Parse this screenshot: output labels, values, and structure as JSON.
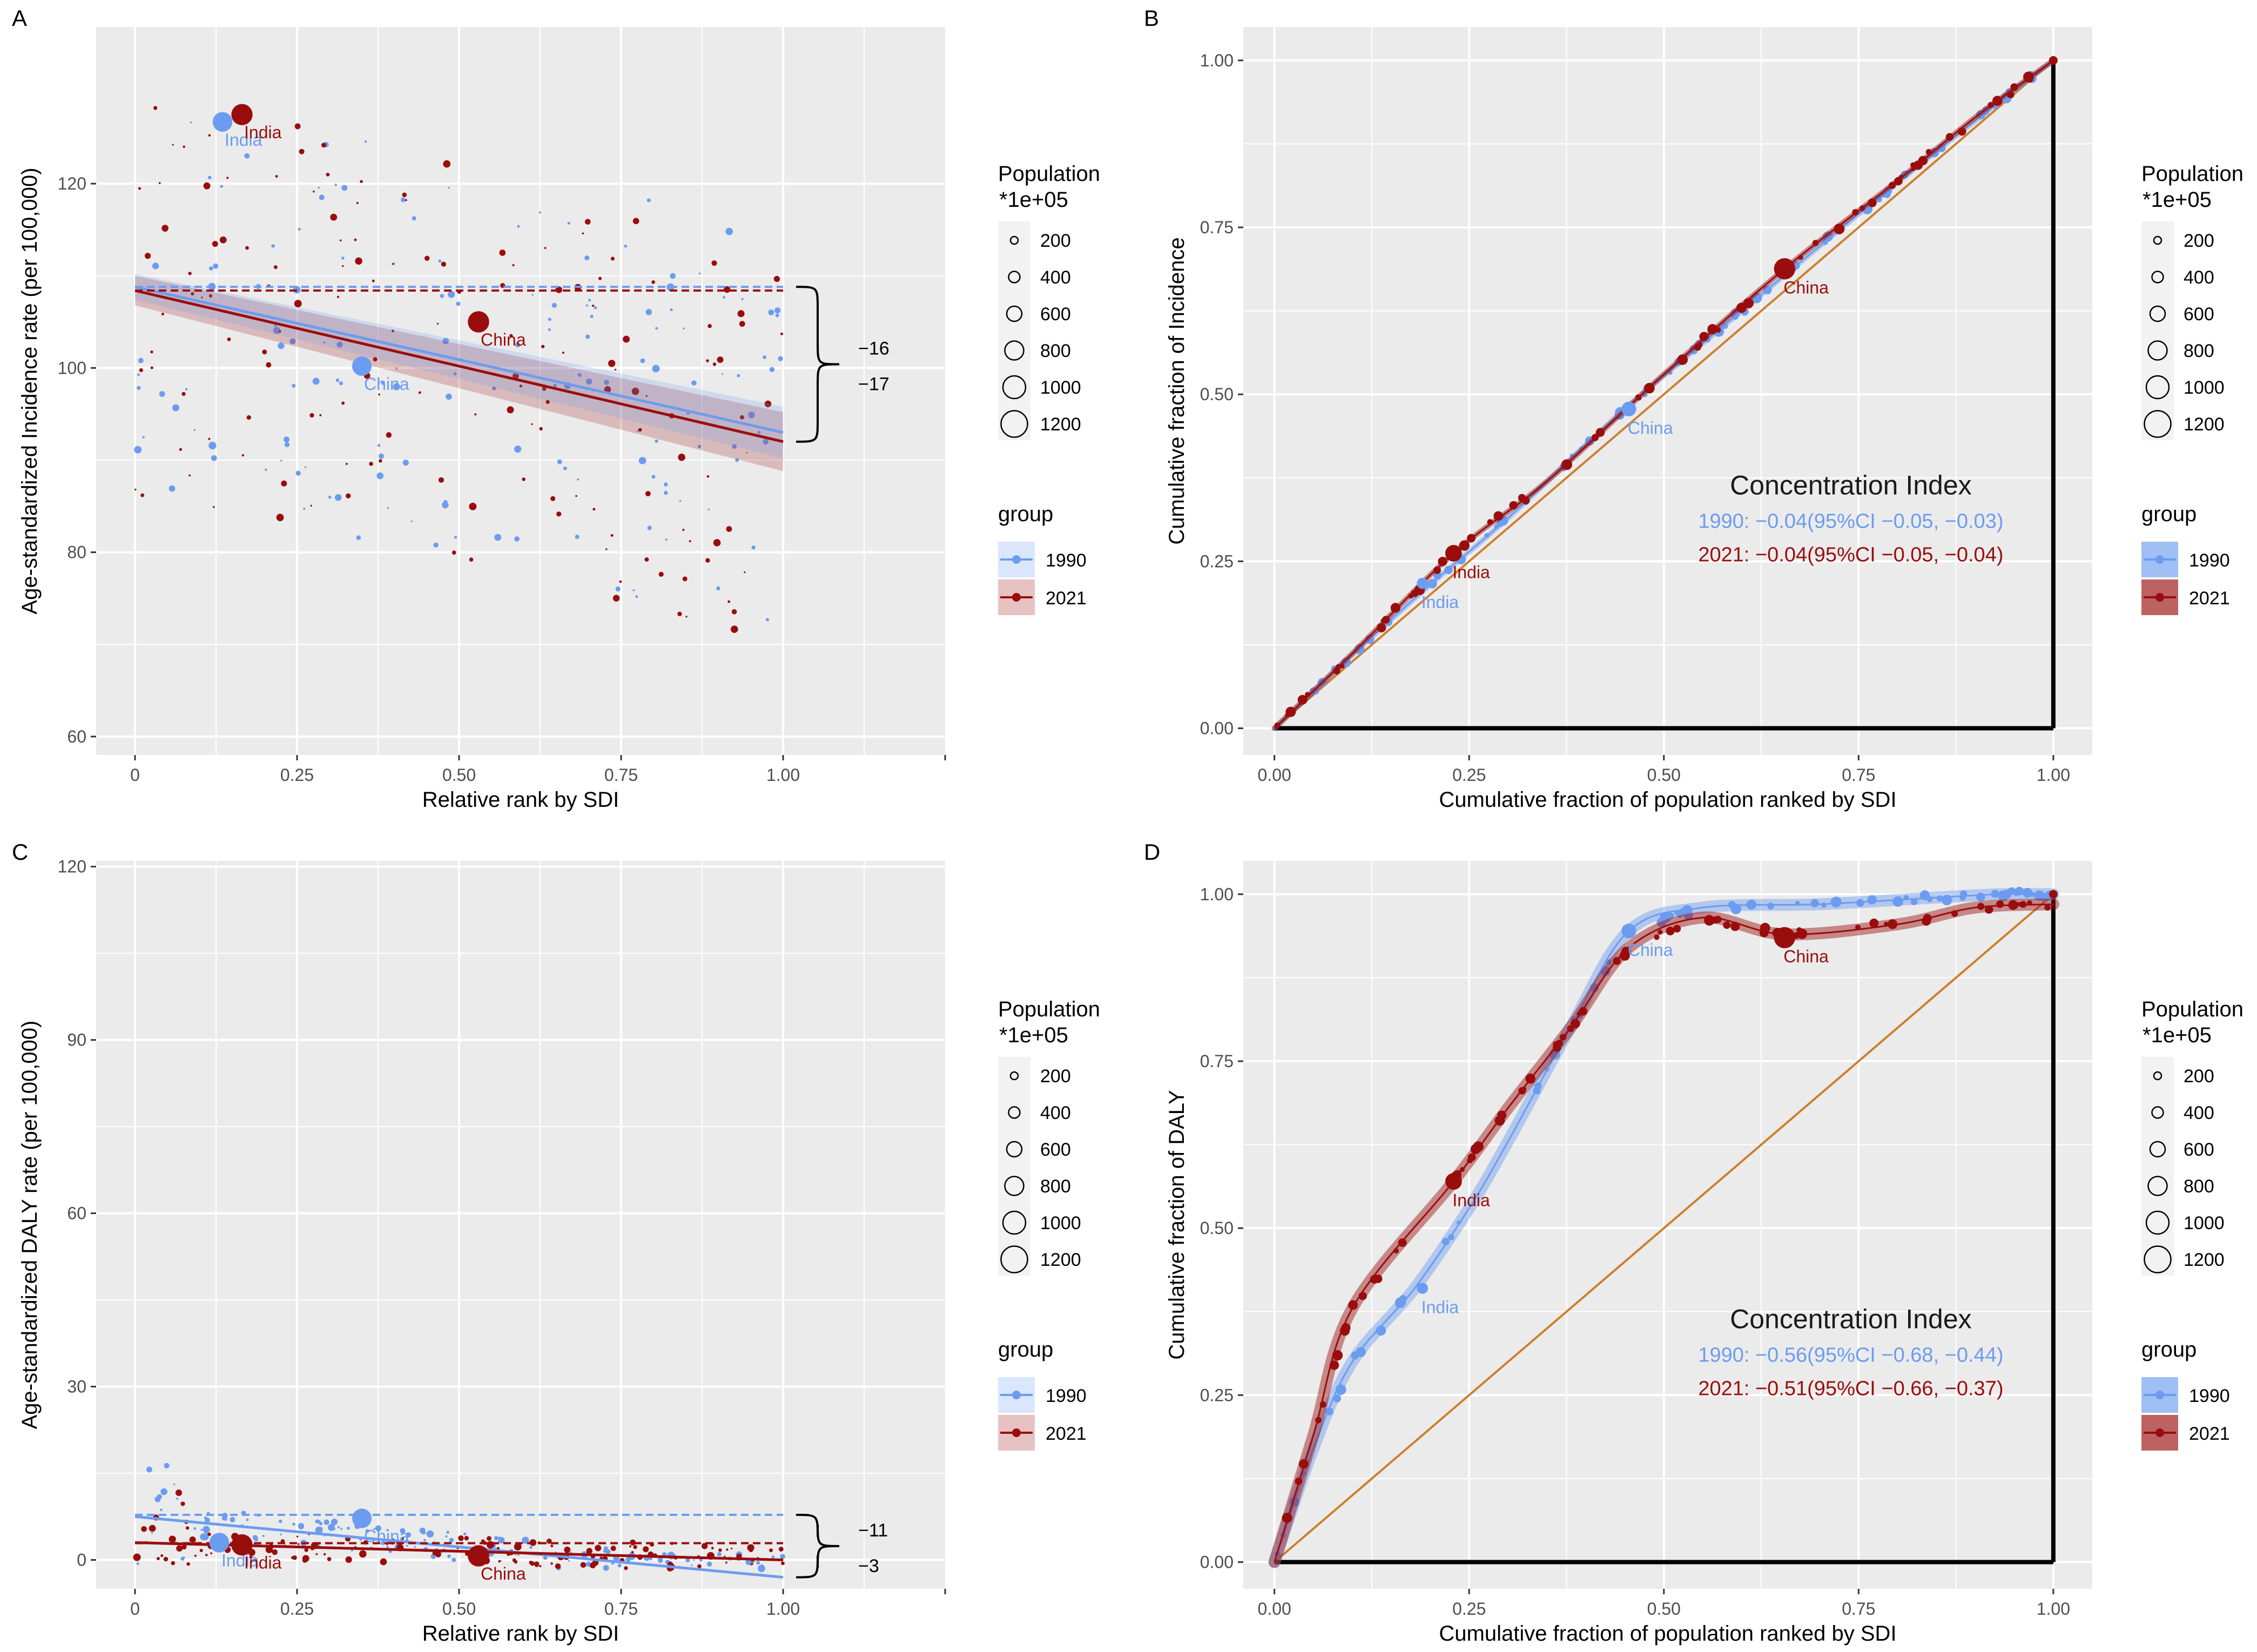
{
  "colors": {
    "c1990": "#6c9cf0",
    "c2021": "#9a0d0d",
    "panel_bg": "#ebebeb",
    "grid": "#ffffff",
    "diagonal": "#cd7f2d",
    "axis_text": "#4d4d4d"
  },
  "legend_common": {
    "population_title_line1": "Population",
    "population_title_line2": "*1e+05",
    "population_values": [
      200,
      400,
      600,
      800,
      1000,
      1200
    ],
    "group_title": "group",
    "group_labels": [
      "1990",
      "2021"
    ]
  },
  "chart_data": [
    {
      "panel": "A",
      "type": "scatter",
      "xlabel": "Relative rank by SDI",
      "ylabel": "Age-standardized Incidence rate (per 100,000)",
      "xlim": [
        -0.06,
        1.25
      ],
      "ylim": [
        58,
        137
      ],
      "xticks": [
        "0",
        "0.25",
        "0.50",
        "0.75",
        "1.00"
      ],
      "yticks": [
        60,
        80,
        100,
        120
      ],
      "series": [
        {
          "name": "1990",
          "fit_start": 108.8,
          "fit_end": 93.0,
          "ref_level": 108.8,
          "ci": 2.8,
          "labeled_points": [
            {
              "label": "India",
              "x": 0.135,
              "y": 126.7,
              "size": 1180
            },
            {
              "label": "China",
              "x": 0.35,
              "y": 100.2,
              "size": 1150
            }
          ]
        },
        {
          "name": "2021",
          "fit_start": 108.4,
          "fit_end": 92.0,
          "ref_level": 108.4,
          "ci": 3.2,
          "labeled_points": [
            {
              "label": "India",
              "x": 0.165,
              "y": 127.5,
              "size": 1400
            },
            {
              "label": "China",
              "x": 0.53,
              "y": 105.0,
              "size": 1420
            }
          ]
        }
      ],
      "brace_labels": [
        "−16",
        "−17"
      ]
    },
    {
      "panel": "B",
      "type": "line",
      "xlabel": "Cumulative fraction of population ranked by SDI",
      "ylabel": "Cumulative fraction of Incidence",
      "xlim": [
        -0.04,
        1.05
      ],
      "ylim": [
        -0.04,
        1.05
      ],
      "xticks": [
        "0.00",
        "0.25",
        "0.50",
        "0.75",
        "1.00"
      ],
      "yticks": [
        "0.00",
        "0.25",
        "0.50",
        "0.75",
        "1.00"
      ],
      "curve_1990": [
        [
          0,
          0
        ],
        [
          0.1,
          0.11
        ],
        [
          0.2,
          0.215
        ],
        [
          0.3,
          0.315
        ],
        [
          0.45,
          0.478
        ],
        [
          0.6,
          0.625
        ],
        [
          0.75,
          0.77
        ],
        [
          0.9,
          0.91
        ],
        [
          1,
          1
        ]
      ],
      "curve_2021": [
        [
          0,
          0
        ],
        [
          0.1,
          0.112
        ],
        [
          0.23,
          0.262
        ],
        [
          0.35,
          0.37
        ],
        [
          0.5,
          0.53
        ],
        [
          0.655,
          0.688
        ],
        [
          0.8,
          0.82
        ],
        [
          0.9,
          0.915
        ],
        [
          1,
          1
        ]
      ],
      "labeled_points": [
        {
          "label": "India",
          "series": "1990",
          "x": 0.19,
          "y": 0.217,
          "size": 300
        },
        {
          "label": "India",
          "series": "2021",
          "x": 0.23,
          "y": 0.262,
          "size": 800
        },
        {
          "label": "China",
          "series": "1990",
          "x": 0.455,
          "y": 0.478,
          "size": 600
        },
        {
          "label": "China",
          "series": "2021",
          "x": 0.655,
          "y": 0.688,
          "size": 1400
        }
      ],
      "ci_title": "Concentration Index",
      "ci_1990": "1990: −0.04(95%CI −0.05, −0.03)",
      "ci_2021": "2021: −0.04(95%CI −0.05, −0.04)"
    },
    {
      "panel": "C",
      "type": "scatter",
      "xlabel": "Relative rank by SDI",
      "ylabel": "Age-standardized DALY rate (per 100,000)",
      "xlim": [
        -0.06,
        1.25
      ],
      "ylim": [
        -5,
        121
      ],
      "xticks": [
        "0",
        "0.25",
        "0.50",
        "0.75",
        "1.00"
      ],
      "yticks": [
        0,
        30,
        60,
        90,
        120
      ],
      "series": [
        {
          "name": "1990",
          "fit_start": 7.5,
          "fit_end": -3.0,
          "ref_level": 7.8,
          "labeled_points": [
            {
              "label": "India",
              "x": 0.13,
              "y": 3.0,
              "size": 1180
            },
            {
              "label": "China",
              "x": 0.35,
              "y": 7.2,
              "size": 1150
            }
          ]
        },
        {
          "name": "2021",
          "fit_start": 3.0,
          "fit_end": 0.0,
          "ref_level": 2.9,
          "labeled_points": [
            {
              "label": "India",
              "x": 0.165,
              "y": 2.6,
              "size": 1400
            },
            {
              "label": "China",
              "x": 0.53,
              "y": 0.7,
              "size": 1420
            }
          ]
        }
      ],
      "brace_labels": [
        "−11",
        "−3"
      ]
    },
    {
      "panel": "D",
      "type": "line",
      "xlabel": "Cumulative fraction of population ranked by SDI",
      "ylabel": "Cumulative fraction of DALY",
      "xlim": [
        -0.04,
        1.05
      ],
      "ylim": [
        -0.04,
        1.05
      ],
      "xticks": [
        "0.00",
        "0.25",
        "0.50",
        "0.75",
        "1.00"
      ],
      "yticks": [
        "0.00",
        "0.25",
        "0.50",
        "0.75",
        "1.00"
      ],
      "curve_1990": [
        [
          0,
          0
        ],
        [
          0.05,
          0.17
        ],
        [
          0.1,
          0.3
        ],
        [
          0.18,
          0.41
        ],
        [
          0.25,
          0.53
        ],
        [
          0.3,
          0.63
        ],
        [
          0.38,
          0.8
        ],
        [
          0.455,
          0.945
        ],
        [
          0.55,
          0.98
        ],
        [
          0.7,
          0.985
        ],
        [
          0.85,
          0.995
        ],
        [
          0.93,
          1.0
        ],
        [
          1,
          1.0
        ]
      ],
      "curve_2021": [
        [
          0,
          0
        ],
        [
          0.05,
          0.19
        ],
        [
          0.1,
          0.38
        ],
        [
          0.23,
          0.57
        ],
        [
          0.3,
          0.68
        ],
        [
          0.38,
          0.8
        ],
        [
          0.455,
          0.92
        ],
        [
          0.55,
          0.965
        ],
        [
          0.655,
          0.94
        ],
        [
          0.8,
          0.955
        ],
        [
          0.9,
          0.98
        ],
        [
          1,
          0.985
        ]
      ],
      "labeled_points": [
        {
          "label": "India",
          "series": "1990",
          "x": 0.19,
          "y": 0.41,
          "size": 300
        },
        {
          "label": "India",
          "series": "2021",
          "x": 0.23,
          "y": 0.57,
          "size": 800
        },
        {
          "label": "China",
          "series": "1990",
          "x": 0.455,
          "y": 0.945,
          "size": 600
        },
        {
          "label": "China",
          "series": "2021",
          "x": 0.655,
          "y": 0.935,
          "size": 1400
        }
      ],
      "ci_title": "Concentration Index",
      "ci_1990": "1990: −0.56(95%CI −0.68, −0.44)",
      "ci_2021": "2021: −0.51(95%CI −0.66, −0.37)"
    }
  ]
}
